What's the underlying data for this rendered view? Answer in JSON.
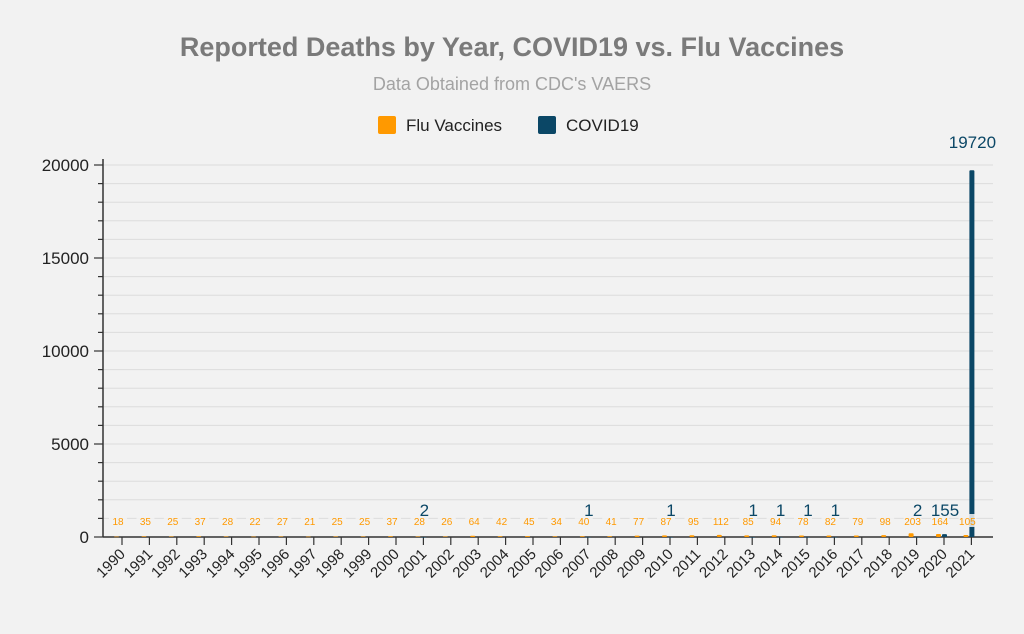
{
  "chart_data": {
    "type": "bar",
    "title": "Reported Deaths by Year, COVID19 vs. Flu Vaccines",
    "subtitle": "Data Obtained from CDC's VAERS",
    "xlabel": "",
    "ylabel": "",
    "ylim": [
      0,
      20000
    ],
    "y_ticks": [
      "0",
      "5000",
      "10000",
      "15000",
      "20000"
    ],
    "y_tick_values": [
      0,
      5000,
      10000,
      15000,
      20000
    ],
    "legend_position": "top-center",
    "grid": true,
    "categories": [
      "1990",
      "1991",
      "1992",
      "1993",
      "1994",
      "1995",
      "1996",
      "1997",
      "1998",
      "1999",
      "2000",
      "2001",
      "2002",
      "2003",
      "2004",
      "2005",
      "2006",
      "2007",
      "2008",
      "2009",
      "2010",
      "2011",
      "2012",
      "2013",
      "2014",
      "2015",
      "2016",
      "2017",
      "2018",
      "2019",
      "2020",
      "2021"
    ],
    "series": [
      {
        "name": "Flu Vaccines",
        "color": "#ff9900",
        "values": [
          18,
          35,
          25,
          37,
          28,
          22,
          27,
          21,
          25,
          25,
          37,
          28,
          26,
          64,
          42,
          45,
          34,
          40,
          41,
          77,
          87,
          95,
          112,
          85,
          94,
          78,
          82,
          79,
          98,
          203,
          164,
          105
        ],
        "labels": [
          "18",
          "35",
          "25",
          "37",
          "28",
          "22",
          "27",
          "21",
          "25",
          "25",
          "37",
          "28",
          "26",
          "64",
          "42",
          "45",
          "34",
          "40",
          "41",
          "77",
          "87",
          "95",
          "112",
          "85",
          "94",
          "78",
          "82",
          "79",
          "98",
          "203",
          "164",
          "105"
        ]
      },
      {
        "name": "COVID19",
        "color": "#0b4766",
        "values": [
          null,
          null,
          null,
          null,
          null,
          null,
          null,
          null,
          null,
          null,
          null,
          2,
          null,
          null,
          null,
          null,
          null,
          1,
          null,
          null,
          1,
          null,
          null,
          1,
          1,
          1,
          1,
          null,
          null,
          2,
          155,
          19720
        ],
        "labels": [
          "",
          "",
          "",
          "",
          "",
          "",
          "",
          "",
          "",
          "",
          "",
          "2",
          "",
          "",
          "",
          "",
          "",
          "1",
          "",
          "",
          "1",
          "",
          "",
          "1",
          "1",
          "1",
          "1",
          "",
          "",
          "2",
          "155",
          "19720"
        ]
      }
    ]
  }
}
